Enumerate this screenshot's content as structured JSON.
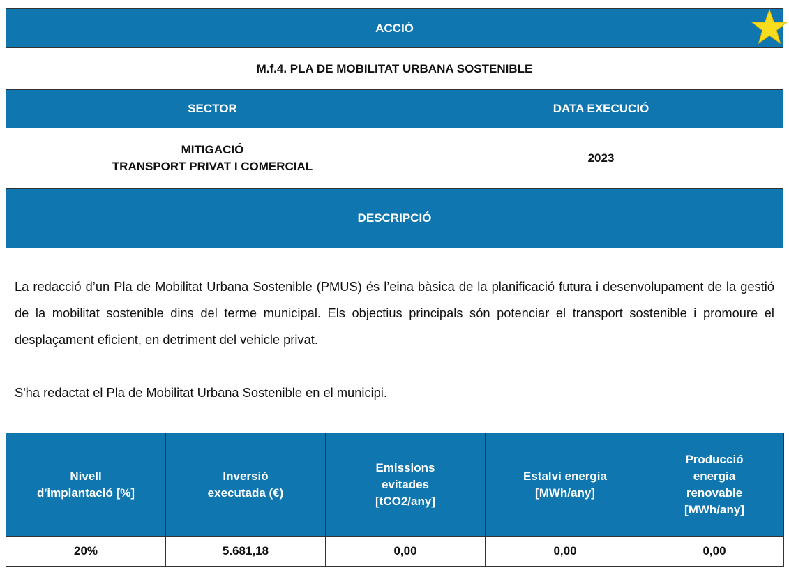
{
  "header": {
    "action_label": "ACCIÓ",
    "code_title": "M.f.4. PLA DE MOBILITAT URBANA SOSTENIBLE"
  },
  "sector": {
    "label": "SECTOR",
    "lines": [
      "MITIGACIÓ",
      "TRANSPORT PRIVAT I COMERCIAL"
    ]
  },
  "execution_date": {
    "label": "DATA EXECUCIÓ",
    "value": "2023"
  },
  "description": {
    "label": "DESCRIPCIÓ",
    "paragraphs": [
      "La redacció d’un Pla de Mobilitat Urbana Sostenible (PMUS) és l’eina bàsica de la planificació futura i desenvolupament de la gestió de la mobilitat sostenible dins del terme municipal. Els objectius principals són potenciar el transport sostenible i promoure el desplaçament eficient, en detriment del vehicle privat.",
      "S'ha redactat el Pla de Mobilitat Urbana Sostenible en el municipi."
    ]
  },
  "table": {
    "headers": [
      [
        "Nivell",
        "d'implantació [%]"
      ],
      [
        "Inversió",
        "executada (€)"
      ],
      [
        "Emissions",
        "evitades",
        "[tCO2/any]"
      ],
      [
        "Estalvi energia",
        "[MWh/any]"
      ],
      [
        "Producció",
        "energia",
        "renovable",
        "[MWh/any]"
      ]
    ],
    "values": [
      "20%",
      "5.681,18",
      "0,00",
      "0,00",
      "0,00"
    ]
  }
}
